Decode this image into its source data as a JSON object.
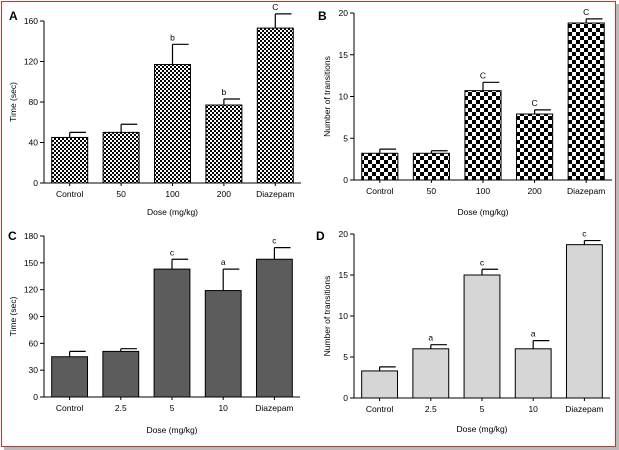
{
  "frame": {
    "border_color": "#c0392b"
  },
  "chart_data": [
    {
      "panel": "A",
      "type": "bar",
      "pattern": "checker-fine",
      "categories": [
        "Control",
        "50",
        "100",
        "200",
        "Diazepam"
      ],
      "values": [
        45,
        50,
        117,
        77,
        153
      ],
      "errors": [
        5,
        8,
        20,
        6,
        14
      ],
      "annotations": [
        "",
        "",
        "b",
        "b",
        "C"
      ],
      "ylabel": "Time (sec)",
      "xlabel": "Dose (mg/kg)",
      "ylim": [
        0,
        160
      ],
      "yticks": [
        0,
        40,
        80,
        120,
        160
      ],
      "grid": false
    },
    {
      "panel": "B",
      "type": "bar",
      "pattern": "checker-coarse",
      "categories": [
        "Control",
        "50",
        "100",
        "200",
        "Diazepam"
      ],
      "values": [
        3.2,
        3.2,
        10.7,
        7.9,
        18.8
      ],
      "errors": [
        0.5,
        0.3,
        1.0,
        0.5,
        0.5
      ],
      "annotations": [
        "",
        "",
        "C",
        "C",
        "C"
      ],
      "ylabel": "Number of transitions",
      "xlabel": "Dose (mg/kg)",
      "ylim": [
        0,
        20
      ],
      "yticks": [
        0,
        5,
        10,
        15,
        20
      ],
      "grid": false
    },
    {
      "panel": "C",
      "type": "bar",
      "fill": "#5c5c5c",
      "categories": [
        "Control",
        "2.5",
        "5",
        "10",
        "Diazepam"
      ],
      "values": [
        45,
        51,
        143,
        119,
        154
      ],
      "errors": [
        6,
        3,
        11,
        24,
        13
      ],
      "annotations": [
        "",
        "",
        "c",
        "a",
        "c"
      ],
      "ylabel": "Time (sec)",
      "xlabel": "Dose (mg/kg)",
      "ylim": [
        0,
        180
      ],
      "yticks": [
        0,
        30,
        60,
        90,
        120,
        150,
        180
      ],
      "grid": false
    },
    {
      "panel": "D",
      "type": "bar",
      "fill": "#d6d6d6",
      "categories": [
        "Control",
        "2.5",
        "5",
        "10",
        "Diazepam"
      ],
      "values": [
        3.3,
        6.0,
        15.0,
        6.0,
        18.7
      ],
      "errors": [
        0.5,
        0.5,
        0.7,
        1.0,
        0.5
      ],
      "annotations": [
        "",
        "a",
        "c",
        "a",
        "c"
      ],
      "ylabel": "Number of transitions",
      "xlabel": "Dose (mg/kg)",
      "ylim": [
        0,
        20
      ],
      "yticks": [
        0,
        5,
        10,
        15,
        20
      ],
      "grid": false
    }
  ]
}
